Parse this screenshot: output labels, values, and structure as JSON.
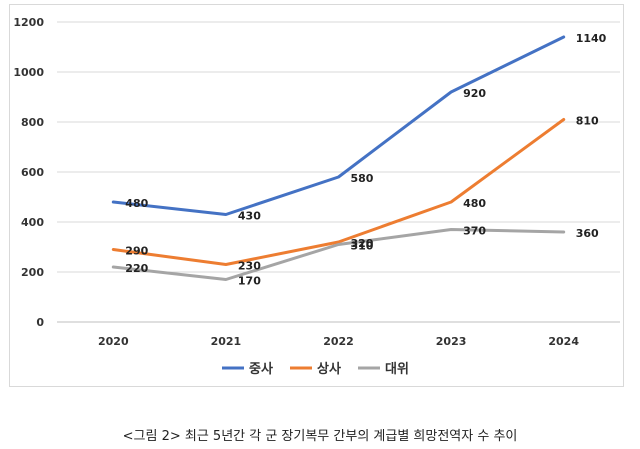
{
  "caption": "<그림 2> 최근 5년간 각 군 장기복무 간부의 계급별 희망전역자 수 추이",
  "chart_data": {
    "type": "line",
    "categories": [
      "2020",
      "2021",
      "2022",
      "2023",
      "2024"
    ],
    "ylim": [
      0,
      1200
    ],
    "yticks": [
      "0",
      "200",
      "400",
      "600",
      "800",
      "1000",
      "1200"
    ],
    "grid": true,
    "legend": "bottom",
    "series": [
      {
        "name": "중사",
        "color": "#4472c4",
        "values": [
          480,
          430,
          580,
          920,
          1140
        ],
        "labels": [
          "480",
          "430",
          "580",
          "920",
          "1140"
        ]
      },
      {
        "name": "상사",
        "color": "#ed7d31",
        "values": [
          290,
          230,
          320,
          480,
          810
        ],
        "labels": [
          "290",
          "230",
          "320",
          "480",
          "810"
        ]
      },
      {
        "name": "대위",
        "color": "#a5a5a5",
        "values": [
          220,
          170,
          310,
          370,
          360
        ],
        "labels": [
          "220",
          "170",
          "310",
          "370",
          "360"
        ]
      }
    ]
  }
}
